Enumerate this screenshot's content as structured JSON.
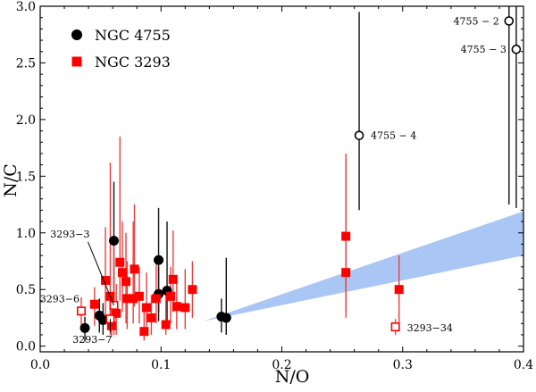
{
  "chart_data": {
    "type": "scatter",
    "xlabel": "N/O",
    "ylabel": "N/C",
    "xlim": [
      0.0,
      0.4
    ],
    "ylim": [
      -0.05,
      3.0
    ],
    "xticks": [
      0.0,
      0.1,
      0.2,
      0.3,
      0.4
    ],
    "xtick_labels": [
      "0.0",
      "0.1",
      "0.2",
      "0.3",
      "0.4"
    ],
    "yticks": [
      0.0,
      0.5,
      1.0,
      1.5,
      2.0,
      2.5,
      3.0
    ],
    "ytick_labels": [
      "0.0",
      "0.5",
      "1.0",
      "1.5",
      "2.0",
      "2.5",
      "3.0"
    ],
    "grid": false,
    "legend": {
      "position": "top-left",
      "entries": [
        {
          "label": "NGC 4755",
          "marker": "circle",
          "color": "#000000"
        },
        {
          "label": "NGC 3293",
          "marker": "square",
          "color": "#ff0000"
        }
      ]
    },
    "band": {
      "color": "#a9c6f5",
      "lower": [
        [
          0.135,
          0.22
        ],
        [
          0.4,
          0.8
        ]
      ],
      "upper": [
        [
          0.135,
          0.22
        ],
        [
          0.4,
          1.19
        ]
      ]
    },
    "series": [
      {
        "name": "NGC 4755",
        "marker": "circle",
        "color": "#000000",
        "points": [
          {
            "x": 0.037,
            "y": 0.16,
            "lo": 0.04,
            "hi": 0.26
          },
          {
            "x": 0.049,
            "y": 0.27,
            "lo": 0.12,
            "hi": 0.42
          },
          {
            "x": 0.052,
            "y": 0.23,
            "lo": 0.1,
            "hi": 0.38
          },
          {
            "x": 0.061,
            "y": 0.93,
            "lo": 0.3,
            "hi": 1.45
          },
          {
            "x": 0.098,
            "y": 0.76,
            "lo": 0.3,
            "hi": 1.22
          },
          {
            "x": 0.098,
            "y": 0.46,
            "lo": 0.22,
            "hi": 0.7
          },
          {
            "x": 0.105,
            "y": 0.49,
            "lo": 0.2,
            "hi": 1.1
          },
          {
            "x": 0.15,
            "y": 0.26,
            "lo": 0.12,
            "hi": 0.42
          },
          {
            "x": 0.154,
            "y": 0.25,
            "lo": 0.1,
            "hi": 0.78
          }
        ]
      },
      {
        "name": "NGC 4755 (labelled)",
        "marker": "open-circle",
        "color": "#000000",
        "points": [
          {
            "x": 0.264,
            "y": 1.86,
            "lo": 1.2,
            "hi": 2.95,
            "label": "4755 − 4"
          },
          {
            "x": 0.388,
            "y": 2.87,
            "lo": 1.25,
            "hi": 3.0,
            "label": "4755 − 2"
          },
          {
            "x": 0.394,
            "y": 2.62,
            "lo": 1.22,
            "hi": 3.0,
            "label": "4755 − 3"
          }
        ]
      },
      {
        "name": "NGC 3293",
        "marker": "square",
        "color": "#ff0000",
        "points": [
          {
            "x": 0.045,
            "y": 0.37,
            "lo": 0.18,
            "hi": 0.52
          },
          {
            "x": 0.054,
            "y": 0.58,
            "lo": 0.2,
            "hi": 1.05
          },
          {
            "x": 0.058,
            "y": 0.44,
            "lo": 0.15,
            "hi": 1.62
          },
          {
            "x": 0.059,
            "y": 0.18,
            "lo": 0.08,
            "hi": 0.32
          },
          {
            "x": 0.063,
            "y": 0.29,
            "lo": 0.1,
            "hi": 0.55
          },
          {
            "x": 0.066,
            "y": 0.74,
            "lo": 0.4,
            "hi": 1.85
          },
          {
            "x": 0.068,
            "y": 0.65,
            "lo": 0.3,
            "hi": 1.1
          },
          {
            "x": 0.071,
            "y": 0.57,
            "lo": 0.2,
            "hi": 1.0
          },
          {
            "x": 0.072,
            "y": 0.42,
            "lo": 0.15,
            "hi": 0.75
          },
          {
            "x": 0.077,
            "y": 0.42,
            "lo": 0.2,
            "hi": 1.1
          },
          {
            "x": 0.078,
            "y": 0.68,
            "lo": 0.35,
            "hi": 1.25
          },
          {
            "x": 0.082,
            "y": 0.44,
            "lo": 0.2,
            "hi": 0.7
          },
          {
            "x": 0.086,
            "y": 0.13,
            "lo": 0.05,
            "hi": 0.3
          },
          {
            "x": 0.088,
            "y": 0.34,
            "lo": 0.15,
            "hi": 0.65
          },
          {
            "x": 0.092,
            "y": 0.25,
            "lo": 0.1,
            "hi": 0.45
          },
          {
            "x": 0.096,
            "y": 0.42,
            "lo": 0.2,
            "hi": 0.72
          },
          {
            "x": 0.104,
            "y": 0.19,
            "lo": 0.1,
            "hi": 0.45
          },
          {
            "x": 0.108,
            "y": 0.44,
            "lo": 0.2,
            "hi": 0.7
          },
          {
            "x": 0.11,
            "y": 0.59,
            "lo": 0.3,
            "hi": 1.02
          },
          {
            "x": 0.113,
            "y": 0.35,
            "lo": 0.15,
            "hi": 0.62
          },
          {
            "x": 0.12,
            "y": 0.34,
            "lo": 0.15,
            "hi": 0.68
          },
          {
            "x": 0.126,
            "y": 0.5,
            "lo": 0.25,
            "hi": 0.75
          },
          {
            "x": 0.253,
            "y": 0.97,
            "lo": 0.25,
            "hi": 1.7
          },
          {
            "x": 0.253,
            "y": 0.65,
            "lo": 0.3,
            "hi": 1.65
          },
          {
            "x": 0.297,
            "y": 0.5,
            "lo": 0.2,
            "hi": 0.8
          }
        ]
      },
      {
        "name": "NGC 3293 (labelled)",
        "marker": "open-square",
        "color": "#ff0000",
        "points": [
          {
            "x": 0.034,
            "y": 0.31,
            "lo": 0.15,
            "hi": 0.43,
            "label": "3293−6"
          },
          {
            "x": 0.061,
            "y": 0.36,
            "lo": 0.1,
            "hi": 0.95,
            "label": "3293−3"
          },
          {
            "x": 0.058,
            "y": 0.24,
            "lo": 0.1,
            "hi": 0.4,
            "label": "3293−7"
          },
          {
            "x": 0.294,
            "y": 0.17,
            "lo": 0.1,
            "hi": 0.24,
            "label": "3293−34"
          }
        ]
      }
    ]
  }
}
